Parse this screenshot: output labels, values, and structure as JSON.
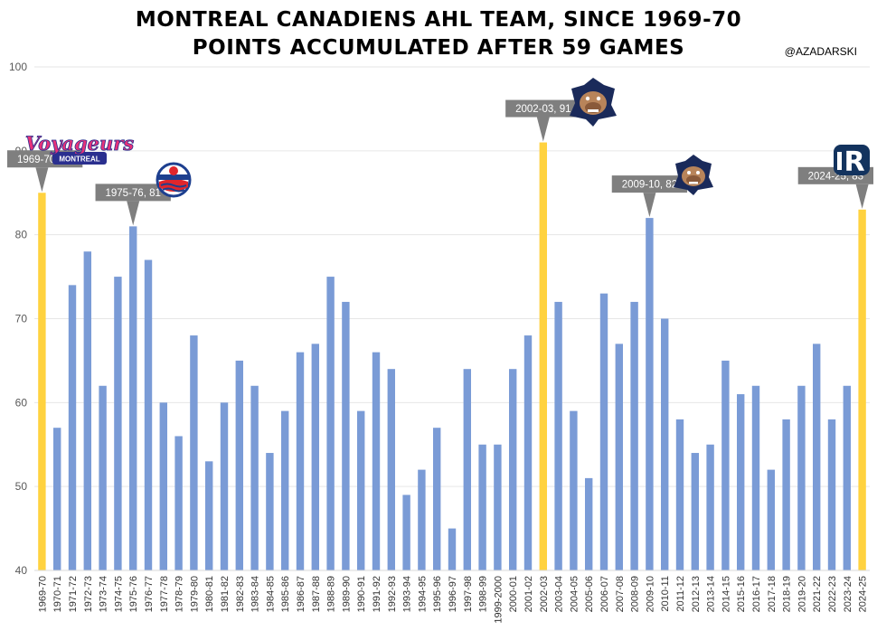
{
  "header": {
    "title_line1": "MONTREAL CANADIENS AHL TEAM, SINCE 1969-70",
    "title_line2": "POINTS ACCUMULATED AFTER 59 GAMES",
    "credit": "@AZADARSKI"
  },
  "logos": [
    {
      "name": "voyageurs-logo",
      "text": "Voyageurs MONTREAL"
    },
    {
      "name": "nova-scotia-voyageurs-logo"
    },
    {
      "name": "hamilton-bulldogs-logo"
    },
    {
      "name": "hamilton-bulldogs-logo-2"
    },
    {
      "name": "laval-rocket-logo"
    }
  ],
  "chart_data": {
    "type": "bar",
    "title": "MONTREAL CANADIENS AHL TEAM, SINCE 1969-70 POINTS ACCUMULATED AFTER 59 GAMES",
    "ylim": [
      40,
      100
    ],
    "yticks": [
      40,
      50,
      60,
      70,
      80,
      90,
      100
    ],
    "grid": true,
    "colors": {
      "normal": "#7a9bd6",
      "highlight": "#ffd23f"
    },
    "categories": [
      "1969-70",
      "1970-71",
      "1971-72",
      "1972-73",
      "1973-74",
      "1974-75",
      "1975-76",
      "1976-77",
      "1977-78",
      "1978-79",
      "1979-80",
      "1980-81",
      "1981-82",
      "1982-83",
      "1983-84",
      "1984-85",
      "1985-86",
      "1986-87",
      "1987-88",
      "1988-89",
      "1989-90",
      "1990-91",
      "1991-92",
      "1992-93",
      "1993-94",
      "1994-95",
      "1995-96",
      "1996-97",
      "1997-98",
      "1998-99",
      "1999-2000",
      "2000-01",
      "2001-02",
      "2002-03",
      "2003-04",
      "2004-05",
      "2005-06",
      "2006-07",
      "2007-08",
      "2008-09",
      "2009-10",
      "2010-11",
      "2011-12",
      "2012-13",
      "2013-14",
      "2014-15",
      "2015-16",
      "2016-17",
      "2017-18",
      "2018-19",
      "2019-20",
      "2021-22",
      "2022-23",
      "2023-24",
      "2024-25"
    ],
    "values": [
      85,
      57,
      74,
      78,
      62,
      75,
      81,
      77,
      60,
      56,
      68,
      53,
      60,
      65,
      62,
      54,
      59,
      66,
      67,
      75,
      72,
      59,
      66,
      64,
      49,
      52,
      57,
      45,
      64,
      55,
      55,
      64,
      68,
      91,
      72,
      59,
      51,
      73,
      67,
      72,
      82,
      70,
      58,
      54,
      55,
      65,
      61,
      62,
      52,
      58,
      62,
      67,
      58,
      62,
      83
    ],
    "highlighted": [
      "1969-70",
      "2002-03",
      "2024-25"
    ],
    "annotations": [
      {
        "category": "1969-70",
        "label": "1969-70, 85"
      },
      {
        "category": "1975-76",
        "label": "1975-76, 81"
      },
      {
        "category": "2002-03",
        "label": "2002-03, 91"
      },
      {
        "category": "2009-10",
        "label": "2009-10, 82"
      },
      {
        "category": "2024-25",
        "label": "2024-25, 83"
      }
    ]
  }
}
